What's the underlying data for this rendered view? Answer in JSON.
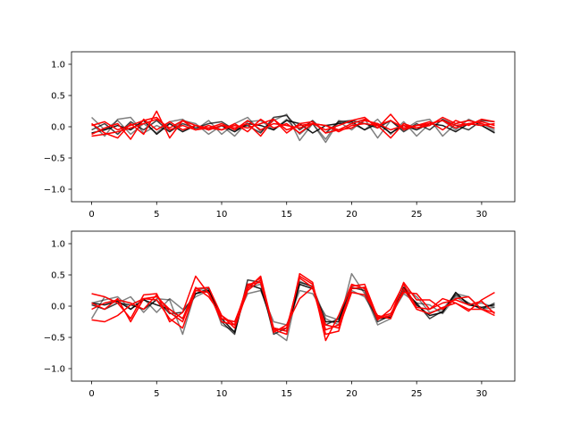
{
  "chart_data": [
    {
      "type": "line",
      "title": "",
      "xlabel": "",
      "ylabel": "",
      "xlim": [
        -1.55,
        32.55
      ],
      "ylim": [
        -1.2,
        1.2
      ],
      "xticks": [
        0,
        5,
        10,
        15,
        20,
        25,
        30
      ],
      "yticks": [
        -1.0,
        -0.5,
        0.0,
        0.5,
        1.0
      ],
      "xtick_labels": [
        "0",
        "5",
        "10",
        "15",
        "20",
        "25",
        "30"
      ],
      "ytick_labels": [
        "−1.0",
        "−0.5",
        "0.0",
        "0.5",
        "1.0"
      ],
      "grid": false,
      "x": [
        0,
        1,
        2,
        3,
        4,
        5,
        6,
        7,
        8,
        9,
        10,
        11,
        12,
        13,
        14,
        15,
        16,
        17,
        18,
        19,
        20,
        21,
        22,
        23,
        24,
        25,
        26,
        27,
        28,
        29,
        30,
        31
      ],
      "series": [
        {
          "color": "#000000",
          "opacity": 0.5,
          "values": [
            0.15,
            -0.05,
            0.1,
            -0.12,
            0.05,
            -0.1,
            0.08,
            0.12,
            -0.05,
            0.1,
            -0.12,
            0.05,
            0.15,
            -0.08,
            0.1,
            0.2,
            -0.22,
            0.05,
            -0.25,
            0.08,
            -0.05,
            0.12,
            -0.18,
            0.1,
            -0.05,
            0.08,
            0.12,
            -0.15,
            0.05,
            0.1,
            0.05,
            -0.05
          ]
        },
        {
          "color": "#000000",
          "opacity": 0.5,
          "values": [
            0.05,
            -0.15,
            0.12,
            0.15,
            -0.1,
            0.02,
            -0.08,
            0.1,
            0.05,
            -0.12,
            0.02,
            -0.15,
            0.08,
            0.1,
            -0.05,
            0.12,
            -0.12,
            0.05,
            -0.2,
            0.1,
            0.05,
            -0.05,
            0.12,
            -0.12,
            0.08,
            -0.15,
            0.05,
            0.1,
            -0.05,
            0.12,
            0.02,
            -0.08
          ]
        },
        {
          "color": "#000000",
          "opacity": 0.75,
          "values": [
            -0.05,
            0.05,
            -0.12,
            0.08,
            -0.05,
            0.1,
            -0.08,
            0.05,
            -0.02,
            0.05,
            0.08,
            -0.05,
            0.02,
            -0.1,
            0.15,
            0.18,
            -0.05,
            0.1,
            -0.1,
            0.08,
            0.1,
            0.05,
            -0.02,
            0.1,
            -0.08,
            0.05,
            -0.05,
            0.12,
            0.02,
            -0.05,
            0.1,
            0.08
          ]
        },
        {
          "color": "#000000",
          "opacity": 0.9,
          "values": [
            -0.1,
            -0.05,
            0.02,
            -0.05,
            0.1,
            -0.12,
            0.05,
            -0.08,
            0.02,
            -0.05,
            0.02,
            -0.08,
            0.05,
            0.02,
            -0.05,
            0.1,
            0.05,
            -0.1,
            0.02,
            0.05,
            0.08,
            -0.05,
            0.05,
            -0.1,
            0.02,
            -0.05,
            0.05,
            0.02,
            -0.08,
            0.05,
            0.02,
            -0.1
          ]
        },
        {
          "color": "#ff0000",
          "opacity": 1,
          "values": [
            0.05,
            -0.1,
            -0.18,
            0.05,
            -0.12,
            0.25,
            -0.18,
            0.1,
            -0.05,
            0.02,
            -0.05,
            0.05,
            -0.08,
            0.12,
            -0.02,
            0.05,
            -0.1,
            0.05,
            -0.05,
            0.02,
            0.1,
            0.15,
            -0.02,
            0.2,
            -0.05,
            0.02,
            0.08,
            -0.05,
            0.1,
            0.02,
            0.12,
            0.08
          ]
        },
        {
          "color": "#ff0000",
          "opacity": 1,
          "values": [
            -0.12,
            -0.02,
            0.05,
            -0.2,
            0.12,
            -0.05,
            0.08,
            -0.05,
            0.02,
            -0.05,
            0.02,
            -0.02,
            0.05,
            -0.15,
            0.12,
            -0.1,
            0.05,
            0.08,
            -0.1,
            -0.05,
            0.05,
            0.12,
            0.02,
            -0.18,
            0.05,
            -0.02,
            0.02,
            0.15,
            0.05,
            0.1,
            0.05,
            -0.02
          ]
        },
        {
          "color": "#ff0000",
          "opacity": 1,
          "values": [
            0.02,
            0.08,
            -0.05,
            0.02,
            0.1,
            0.15,
            -0.05,
            0.02,
            -0.05,
            -0.02,
            0.05,
            -0.05,
            0.1,
            -0.05,
            0.05,
            0.02,
            -0.02,
            0.05,
            0.02,
            -0.05,
            -0.02,
            0.1,
            0.05,
            -0.05,
            0.02,
            -0.02,
            0.05,
            0.1,
            -0.02,
            0.05,
            0.08,
            0.02
          ]
        },
        {
          "color": "#ff0000",
          "opacity": 1,
          "values": [
            -0.15,
            -0.12,
            -0.08,
            -0.02,
            0.05,
            0.12,
            -0.02,
            0.1,
            0.02,
            -0.02,
            -0.05,
            0.02,
            -0.02,
            0.05,
            0.12,
            -0.05,
            0.02,
            0.05,
            0.02,
            -0.08,
            0.02,
            0.05,
            0.02,
            0.1,
            -0.02,
            0.02,
            0.05,
            0.1,
            0.02,
            0.05,
            0.02,
            0.05
          ]
        }
      ]
    },
    {
      "type": "line",
      "title": "",
      "xlabel": "",
      "ylabel": "",
      "xlim": [
        -1.55,
        32.55
      ],
      "ylim": [
        -1.2,
        1.2
      ],
      "xticks": [
        0,
        5,
        10,
        15,
        20,
        25,
        30
      ],
      "yticks": [
        -1.0,
        -0.5,
        0.0,
        0.5,
        1.0
      ],
      "xtick_labels": [
        "0",
        "5",
        "10",
        "15",
        "20",
        "25",
        "30"
      ],
      "ytick_labels": [
        "−1.0",
        "−0.5",
        "0.0",
        "0.5",
        "1.0"
      ],
      "grid": false,
      "x": [
        0,
        1,
        2,
        3,
        4,
        5,
        6,
        7,
        8,
        9,
        10,
        11,
        12,
        13,
        14,
        15,
        16,
        17,
        18,
        19,
        20,
        21,
        22,
        23,
        24,
        25,
        26,
        27,
        28,
        29,
        30,
        31
      ],
      "series": [
        {
          "color": "#000000",
          "opacity": 0.5,
          "values": [
            -0.2,
            0.15,
            0.05,
            0.15,
            -0.1,
            0.12,
            0.1,
            -0.45,
            0.25,
            0.3,
            -0.3,
            -0.4,
            0.3,
            0.35,
            -0.4,
            -0.55,
            0.4,
            0.3,
            -0.2,
            -0.3,
            0.52,
            0.2,
            -0.3,
            -0.2,
            0.3,
            0.15,
            -0.1,
            -0.05,
            0.2,
            0.15,
            -0.05,
            -0.02
          ]
        },
        {
          "color": "#000000",
          "opacity": 0.5,
          "values": [
            0.05,
            0.1,
            0.15,
            -0.05,
            0.12,
            -0.1,
            0.12,
            -0.05,
            0.15,
            0.25,
            -0.2,
            -0.25,
            0.2,
            0.25,
            -0.25,
            -0.3,
            0.25,
            0.2,
            -0.15,
            -0.22,
            0.25,
            0.15,
            -0.2,
            -0.15,
            0.2,
            0.05,
            0.02,
            -0.12,
            0.15,
            0.02,
            0.05,
            -0.02
          ]
        },
        {
          "color": "#000000",
          "opacity": 0.75,
          "values": [
            0.02,
            -0.05,
            0.05,
            0.02,
            -0.05,
            0.1,
            -0.12,
            -0.1,
            0.2,
            0.28,
            -0.25,
            -0.45,
            0.42,
            0.38,
            -0.45,
            -0.35,
            0.38,
            0.32,
            -0.3,
            -0.2,
            0.3,
            0.25,
            -0.25,
            -0.15,
            0.25,
            0.05,
            -0.2,
            -0.08,
            0.18,
            0.05,
            -0.05,
            0.05
          ]
        },
        {
          "color": "#000000",
          "opacity": 0.9,
          "values": [
            0.05,
            0.02,
            0.08,
            -0.05,
            0.1,
            0.02,
            -0.05,
            -0.2,
            0.2,
            0.25,
            -0.2,
            -0.42,
            0.35,
            0.28,
            -0.35,
            -0.4,
            0.35,
            0.28,
            -0.25,
            -0.25,
            0.28,
            0.3,
            -0.2,
            -0.18,
            0.3,
            0.02,
            -0.15,
            -0.1,
            0.22,
            0.02,
            -0.02,
            0.02
          ]
        },
        {
          "color": "#ff0000",
          "opacity": 1,
          "values": [
            0.2,
            0.15,
            0.05,
            -0.2,
            0.18,
            0.2,
            -0.25,
            -0.1,
            0.48,
            0.2,
            -0.2,
            -0.25,
            0.28,
            0.48,
            -0.38,
            -0.45,
            0.52,
            0.38,
            -0.55,
            -0.15,
            0.35,
            0.28,
            -0.22,
            -0.05,
            0.35,
            -0.02,
            -0.05,
            0.12,
            0.05,
            -0.08,
            0.1,
            0.22
          ]
        },
        {
          "color": "#ff0000",
          "opacity": 1,
          "values": [
            -0.22,
            -0.25,
            -0.15,
            0.02,
            0.12,
            0.1,
            -0.2,
            -0.35,
            0.25,
            0.22,
            -0.25,
            -0.3,
            0.32,
            0.45,
            -0.42,
            -0.3,
            0.12,
            0.3,
            -0.3,
            -0.35,
            0.22,
            0.18,
            -0.15,
            -0.2,
            0.28,
            -0.05,
            -0.12,
            -0.02,
            0.05,
            -0.05,
            -0.05,
            -0.1
          ]
        },
        {
          "color": "#ff0000",
          "opacity": 1,
          "values": [
            0.05,
            -0.05,
            0.12,
            -0.25,
            0.12,
            0.15,
            -0.05,
            -0.2,
            0.3,
            0.15,
            -0.15,
            -0.35,
            0.25,
            0.42,
            -0.35,
            -0.4,
            0.48,
            0.35,
            -0.38,
            -0.3,
            0.28,
            0.3,
            -0.2,
            -0.15,
            0.38,
            0.1,
            0.1,
            -0.05,
            0.12,
            0.15,
            -0.05,
            -0.15
          ]
        },
        {
          "color": "#ff0000",
          "opacity": 1,
          "values": [
            -0.05,
            0.05,
            0.1,
            0.05,
            -0.05,
            0.18,
            -0.1,
            -0.25,
            0.28,
            0.3,
            -0.15,
            -0.3,
            0.35,
            0.38,
            -0.38,
            -0.35,
            0.45,
            0.3,
            -0.45,
            -0.4,
            0.32,
            0.35,
            -0.18,
            -0.12,
            0.22,
            0.2,
            -0.05,
            0.05,
            0.1,
            0.02,
            0.08,
            -0.12
          ]
        }
      ]
    }
  ]
}
